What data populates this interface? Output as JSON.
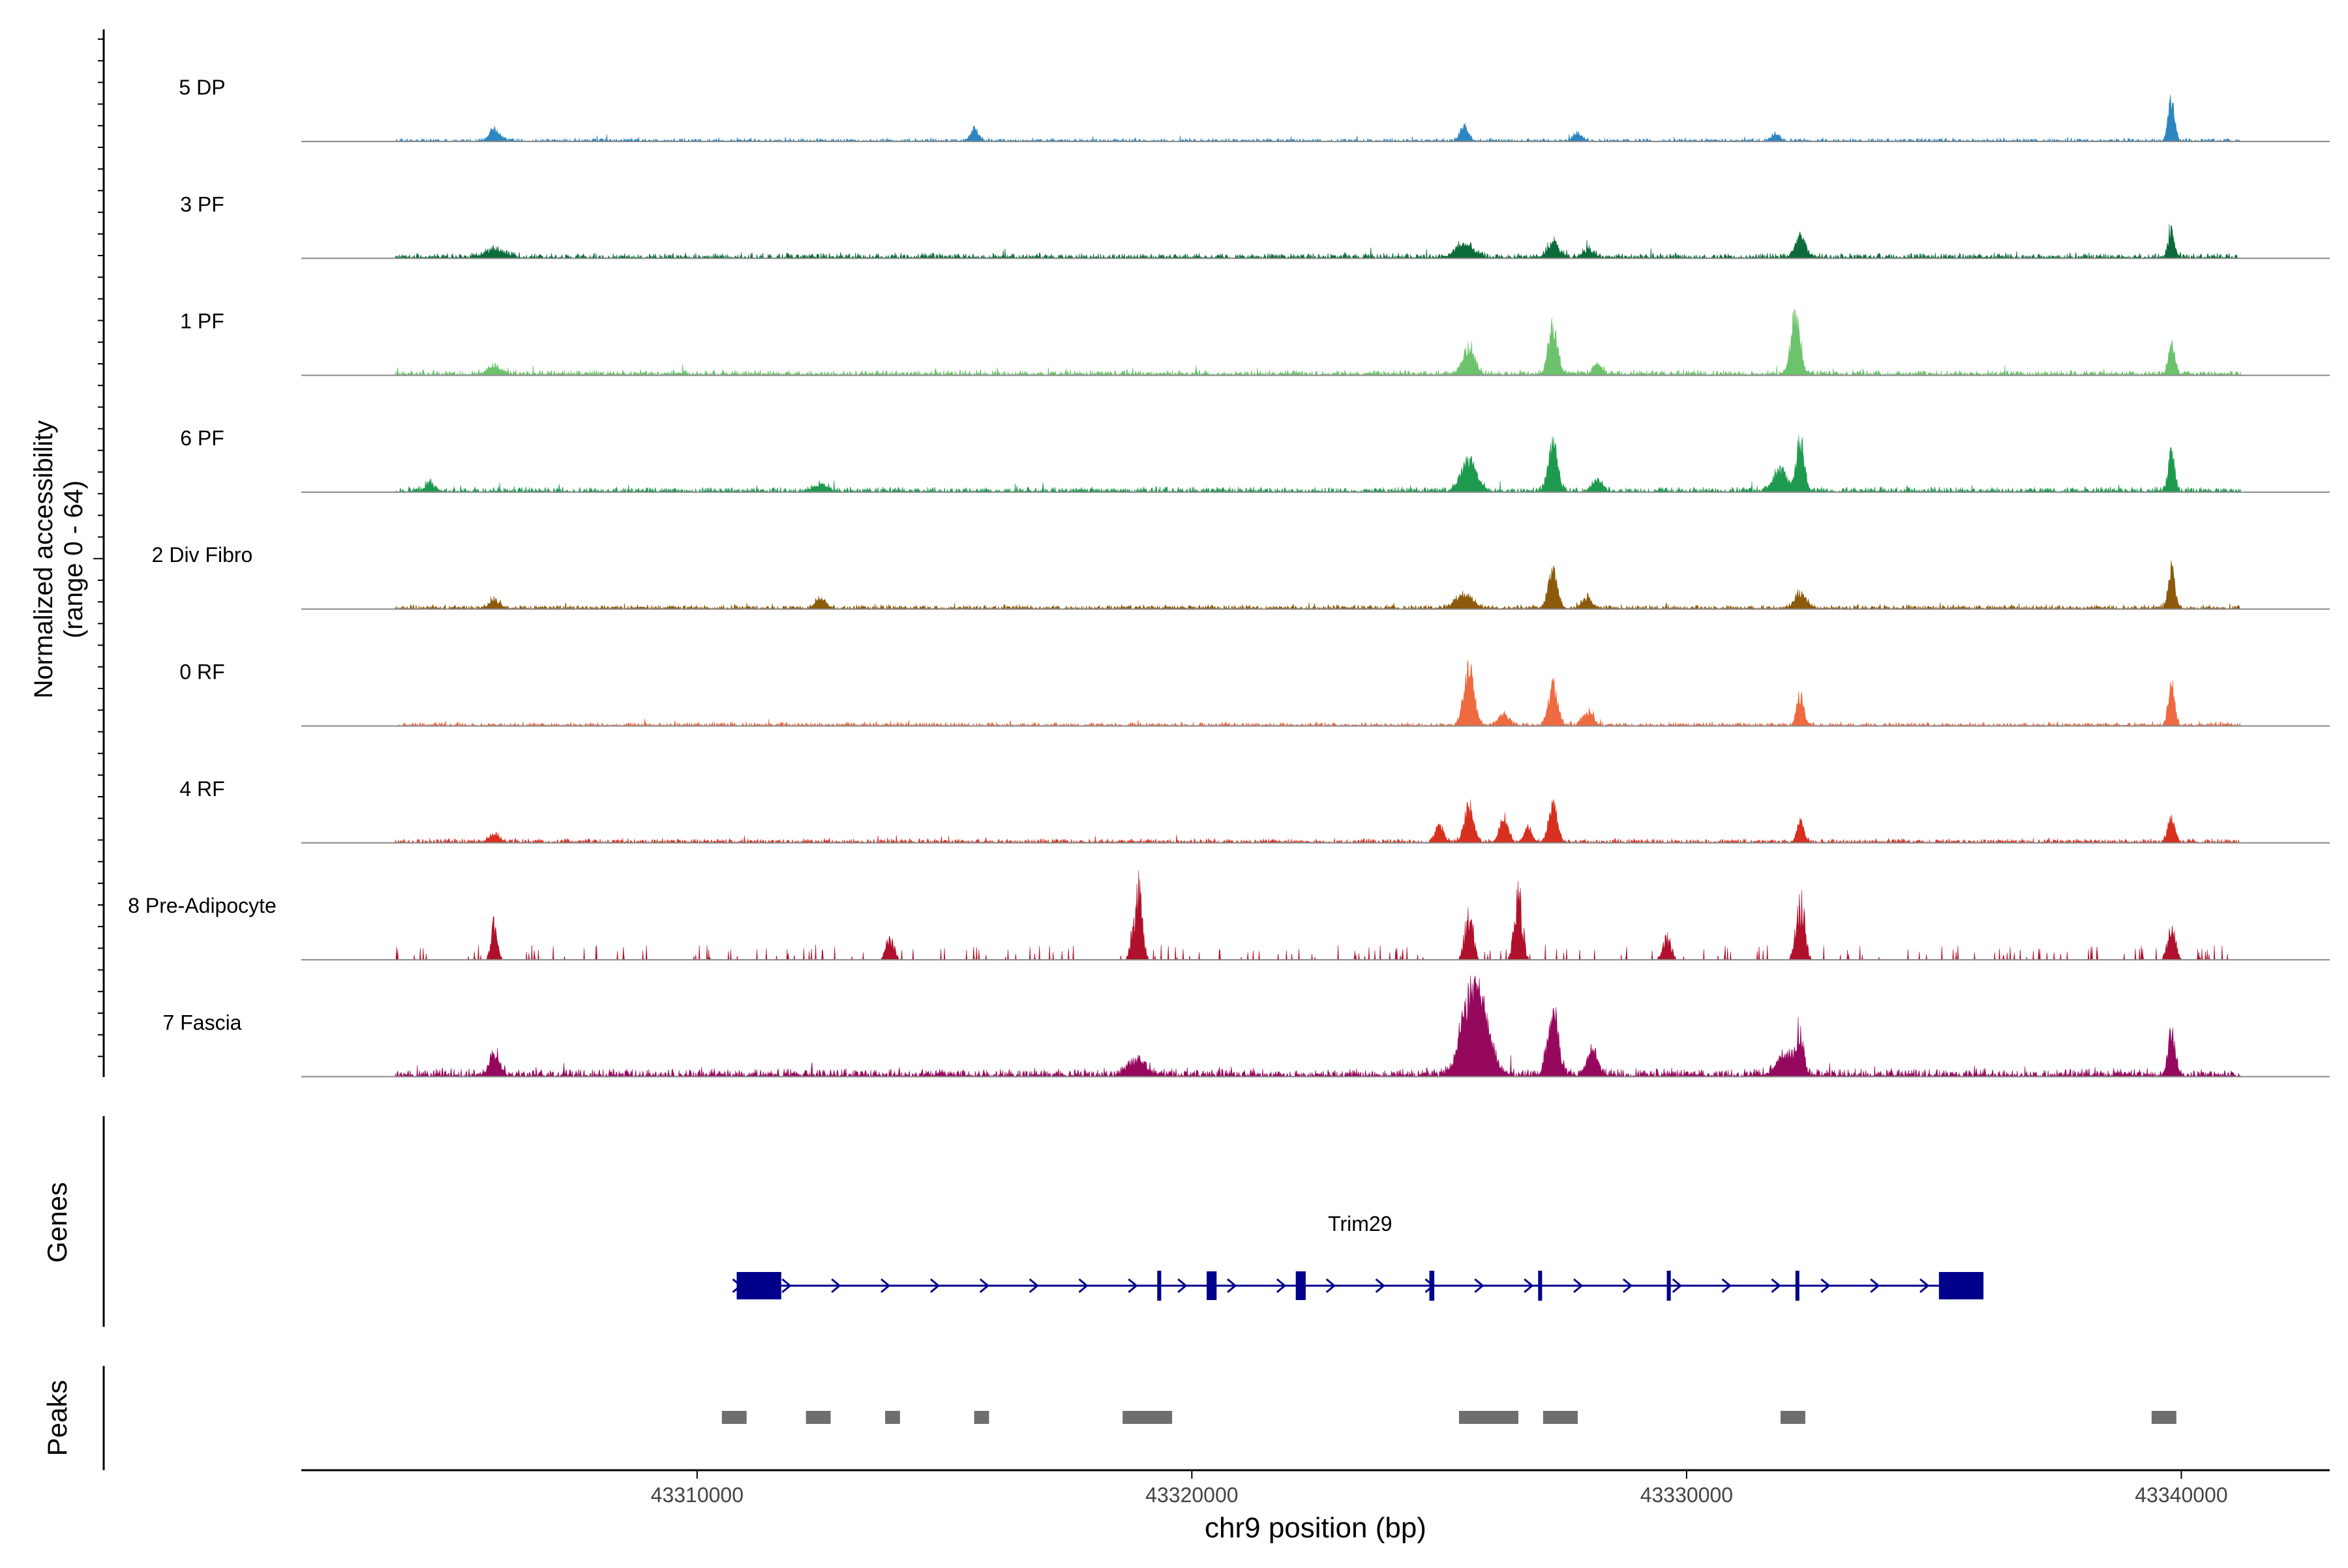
{
  "chart_data": {
    "type": "area",
    "title": "",
    "ylabel_line1": "Normalized accessibility",
    "ylabel_line2": "(range 0 - 64)",
    "xlabel": "chr9 position (bp)",
    "xlim": [
      43302000,
      43343000
    ],
    "x_ticks": [
      43310000,
      43320000,
      43330000,
      43340000
    ],
    "x_tick_labels": [
      "43310000",
      "43320000",
      "43330000",
      "43340000"
    ],
    "ylim": [
      0,
      64
    ],
    "data_range": [
      43303900,
      43341200
    ],
    "series": [
      {
        "name": "5 DP",
        "color": "#2E86C1",
        "noise": 1.2,
        "sparse": false,
        "peaks": [
          [
            43305900,
            4.5,
            150
          ],
          [
            43315600,
            5,
            110
          ],
          [
            43325500,
            5.5,
            120
          ],
          [
            43327800,
            3,
            120
          ],
          [
            43331800,
            3,
            120
          ],
          [
            43339800,
            16,
            90
          ]
        ]
      },
      {
        "name": "3 PF",
        "color": "#0B6B3A",
        "noise": 2.0,
        "sparse": false,
        "peaks": [
          [
            43305900,
            3,
            300
          ],
          [
            43325500,
            5.5,
            250
          ],
          [
            43327300,
            6,
            160
          ],
          [
            43328000,
            3,
            150
          ],
          [
            43332300,
            8,
            150
          ],
          [
            43339800,
            10,
            90
          ]
        ]
      },
      {
        "name": "1 PF",
        "color": "#6DC36D",
        "noise": 2.0,
        "sparse": false,
        "peaks": [
          [
            43305900,
            3,
            200
          ],
          [
            43325600,
            11,
            160
          ],
          [
            43327300,
            18,
            130
          ],
          [
            43328200,
            4,
            120
          ],
          [
            43332200,
            23,
            130
          ],
          [
            43339800,
            12,
            90
          ]
        ]
      },
      {
        "name": "6 PF",
        "color": "#1E9A4E",
        "noise": 2.0,
        "sparse": false,
        "peaks": [
          [
            43304600,
            3,
            150
          ],
          [
            43312500,
            3,
            200
          ],
          [
            43325600,
            12,
            220
          ],
          [
            43327300,
            19,
            130
          ],
          [
            43328200,
            4,
            150
          ],
          [
            43331900,
            8,
            200
          ],
          [
            43332300,
            20,
            110
          ],
          [
            43339800,
            16,
            90
          ]
        ]
      },
      {
        "name": "2 Div Fibro",
        "color": "#8B5A0B",
        "noise": 1.6,
        "sparse": false,
        "peaks": [
          [
            43305900,
            3,
            150
          ],
          [
            43312500,
            4,
            150
          ],
          [
            43325500,
            5,
            250
          ],
          [
            43327300,
            15,
            130
          ],
          [
            43328000,
            4,
            150
          ],
          [
            43332300,
            6,
            160
          ],
          [
            43339800,
            16,
            90
          ]
        ]
      },
      {
        "name": "0 RF",
        "color": "#EE6A41",
        "noise": 1.4,
        "sparse": false,
        "peaks": [
          [
            43325600,
            22,
            150
          ],
          [
            43326300,
            4,
            150
          ],
          [
            43327300,
            16,
            130
          ],
          [
            43328000,
            5,
            150
          ],
          [
            43332300,
            12,
            100
          ],
          [
            43339800,
            16,
            90
          ]
        ]
      },
      {
        "name": "4 RF",
        "color": "#D7301F",
        "noise": 1.6,
        "sparse": false,
        "peaks": [
          [
            43305900,
            3,
            150
          ],
          [
            43325000,
            6,
            120
          ],
          [
            43325600,
            14,
            130
          ],
          [
            43326300,
            10,
            120
          ],
          [
            43326800,
            6,
            100
          ],
          [
            43327300,
            15,
            120
          ],
          [
            43332300,
            8,
            100
          ],
          [
            43339800,
            9,
            100
          ]
        ]
      },
      {
        "name": "8 Pre-Adipocyte",
        "color": "#B0102B",
        "noise": 0,
        "sparse": true,
        "peaks": [
          [
            43305900,
            17,
            90
          ],
          [
            43313900,
            10,
            120
          ],
          [
            43318900,
            34,
            120
          ],
          [
            43325600,
            26,
            110
          ],
          [
            43326600,
            32,
            110
          ],
          [
            43329600,
            10,
            120
          ],
          [
            43332300,
            28,
            120
          ],
          [
            43339800,
            17,
            110
          ]
        ]
      },
      {
        "name": "7 Fascia",
        "color": "#96085E",
        "noise": 3.0,
        "sparse": false,
        "peaks": [
          [
            43305900,
            8,
            150
          ],
          [
            43318900,
            6,
            250
          ],
          [
            43325600,
            28,
            250
          ],
          [
            43325900,
            20,
            250
          ],
          [
            43327300,
            26,
            150
          ],
          [
            43328100,
            10,
            150
          ],
          [
            43332000,
            8,
            250
          ],
          [
            43332300,
            14,
            100
          ],
          [
            43339800,
            17,
            100
          ]
        ]
      }
    ],
    "genes_label": "Genes",
    "gene": {
      "name": "Trim29",
      "color": "#00008B",
      "start": 43310800,
      "end": 43336000,
      "exons": [
        [
          43310800,
          43311700,
          "large"
        ],
        [
          43319300,
          43319380,
          "small"
        ],
        [
          43320300,
          43320500,
          "medium"
        ],
        [
          43322100,
          43322300,
          "medium"
        ],
        [
          43324800,
          43324900,
          "small"
        ],
        [
          43327000,
          43327080,
          "small"
        ],
        [
          43329600,
          43329680,
          "small"
        ],
        [
          43332200,
          43332270,
          "small"
        ],
        [
          43335100,
          43336000,
          "large"
        ]
      ]
    },
    "peaks_label": "Peaks",
    "peak_color": "#6E6E6E",
    "peaks": [
      [
        43310500,
        43311000
      ],
      [
        43312200,
        43312700
      ],
      [
        43313800,
        43314100
      ],
      [
        43315600,
        43315900
      ],
      [
        43318600,
        43319600
      ],
      [
        43325400,
        43326600
      ],
      [
        43327100,
        43327800
      ],
      [
        43331900,
        43332400
      ],
      [
        43339400,
        43339900
      ]
    ]
  }
}
